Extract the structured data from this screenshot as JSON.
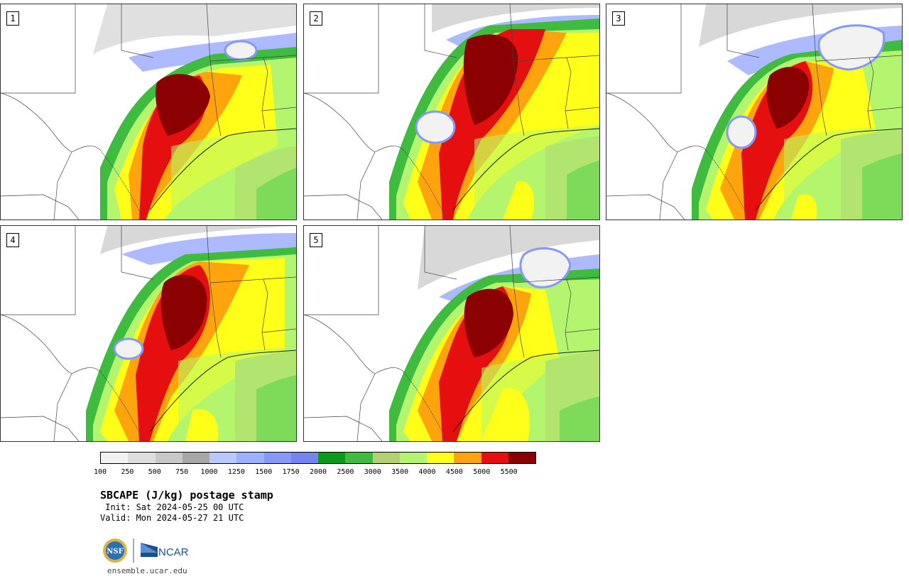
{
  "panels": [
    {
      "label": "1"
    },
    {
      "label": "2"
    },
    {
      "label": "3"
    },
    {
      "label": "4"
    },
    {
      "label": "5"
    }
  ],
  "colorbar": {
    "colors": [
      "#f2f2f2",
      "#dedede",
      "#c8c8c8",
      "#a7a7a7",
      "#b9c8ff",
      "#9cb1ff",
      "#8698f8",
      "#7584f2",
      "#0a9a1e",
      "#3fbb40",
      "#b2d074",
      "#b3f56e",
      "#ffff19",
      "#ffa40d",
      "#e60f0f",
      "#8b0000"
    ],
    "labels": [
      "100",
      "250",
      "500",
      "750",
      "1000",
      "1250",
      "1500",
      "1750",
      "2000",
      "2500",
      "3000",
      "3500",
      "4000",
      "4500",
      "5000",
      "5500"
    ]
  },
  "title": "SBCAPE (J/kg) postage stamp",
  "init": " Init: Sat 2024-05-25 00 UTC",
  "valid": "Valid: Mon 2024-05-27 21 UTC",
  "logos": {
    "nsf": "NSF",
    "ncar": "NCAR"
  },
  "url": "ensemble.ucar.edu"
}
